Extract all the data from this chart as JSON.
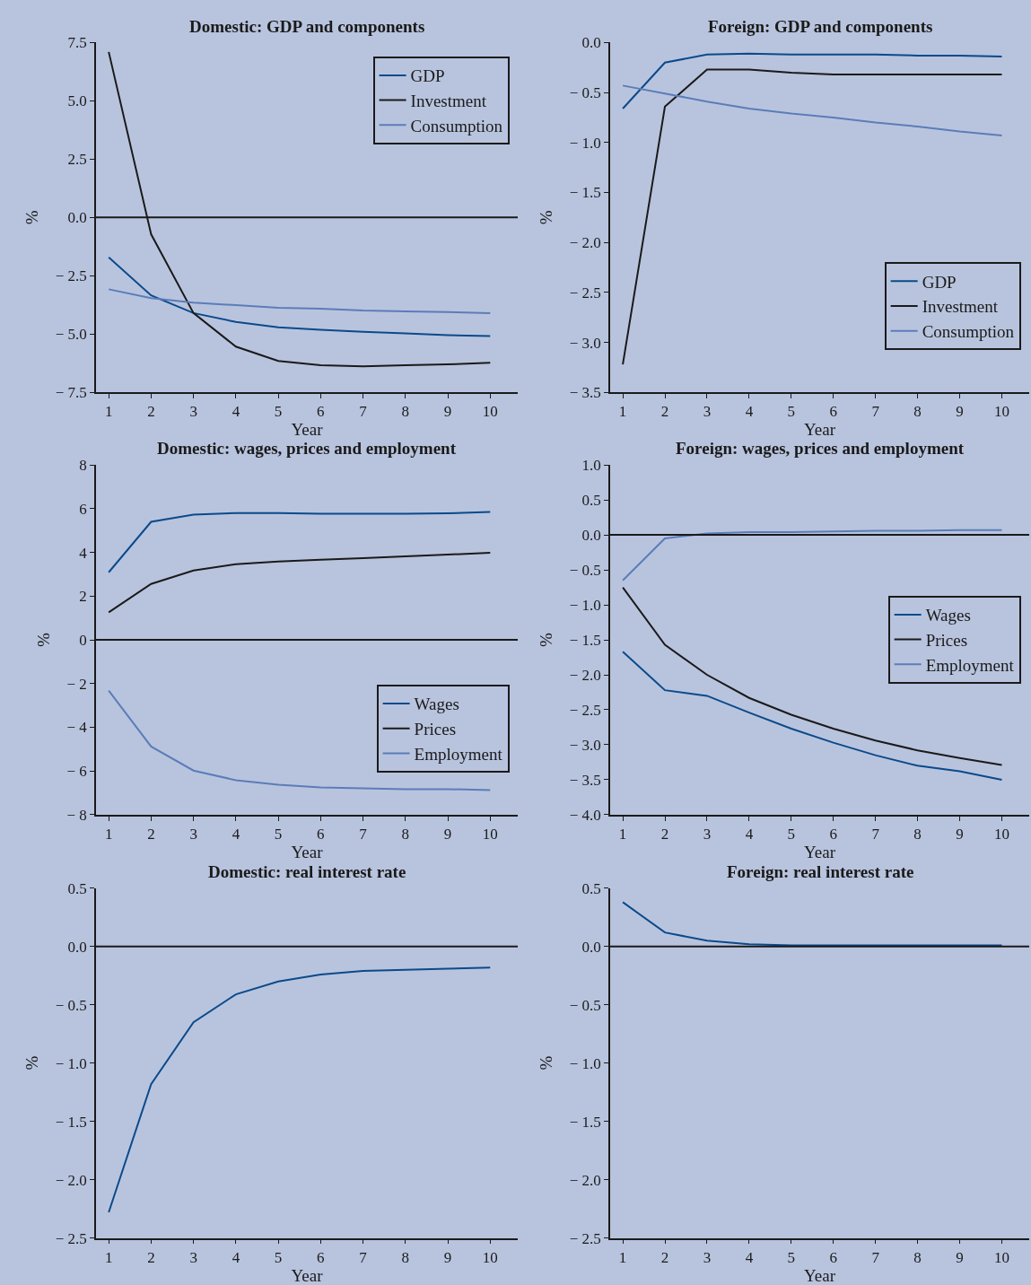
{
  "chart_data": [
    {
      "type": "line",
      "title": "Domestic: GDP and components",
      "xlabel": "Year",
      "ylabel": "%",
      "x": [
        1,
        2,
        3,
        4,
        5,
        6,
        7,
        8,
        9,
        10
      ],
      "xlim": [
        0.7,
        10.65
      ],
      "xticks": [
        1,
        2,
        3,
        4,
        5,
        6,
        7,
        8,
        9,
        10
      ],
      "ylim": [
        -7.5,
        7.5
      ],
      "yticks": [
        {
          "value": -7.5,
          "label": "− 7.5"
        },
        {
          "value": -5,
          "label": "− 5.0"
        },
        {
          "value": -2.5,
          "label": "− 2.5"
        },
        {
          "value": 0,
          "label": "0.0"
        },
        {
          "value": 2.5,
          "label": "2.5"
        },
        {
          "value": 5,
          "label": "5.0"
        },
        {
          "value": 7.5,
          "label": "7.5"
        }
      ],
      "grid": false,
      "legend": "top right",
      "ref_lines": [
        {
          "axis": "y",
          "value": 0,
          "color": "#1a1a1a"
        }
      ],
      "series": [
        {
          "name": "GDP",
          "color": "#0b4a8b",
          "values": [
            -1.71,
            -3.34,
            -4.1,
            -4.48,
            -4.71,
            -4.82,
            -4.9,
            -4.97,
            -5.05,
            -5.09
          ]
        },
        {
          "name": "Investment",
          "color": "#1a1a1a",
          "values": [
            7.1,
            -0.72,
            -4.1,
            -5.54,
            -6.15,
            -6.34,
            -6.38,
            -6.34,
            -6.3,
            -6.23
          ]
        },
        {
          "name": "Consumption",
          "color": "#5b7db8",
          "values": [
            -3.08,
            -3.46,
            -3.65,
            -3.76,
            -3.87,
            -3.91,
            -3.99,
            -4.03,
            -4.06,
            -4.1
          ]
        }
      ]
    },
    {
      "type": "line",
      "title": "Foreign: GDP and components",
      "xlabel": "Year",
      "ylabel": "%",
      "x": [
        1,
        2,
        3,
        4,
        5,
        6,
        7,
        8,
        9,
        10
      ],
      "xlim": [
        0.7,
        10.65
      ],
      "xticks": [
        1,
        2,
        3,
        4,
        5,
        6,
        7,
        8,
        9,
        10
      ],
      "ylim": [
        -3.5,
        0
      ],
      "yticks": [
        {
          "value": -3.5,
          "label": "− 3.5"
        },
        {
          "value": -3,
          "label": "− 3.0"
        },
        {
          "value": -2.5,
          "label": "− 2.5"
        },
        {
          "value": -2,
          "label": "− 2.0"
        },
        {
          "value": -1.5,
          "label": "− 1.5"
        },
        {
          "value": -1,
          "label": "− 1.0"
        },
        {
          "value": -0.5,
          "label": "− 0.5"
        },
        {
          "value": 0,
          "label": "0.0"
        }
      ],
      "grid": false,
      "legend": "bottom right",
      "series": [
        {
          "name": "GDP",
          "color": "#0b4a8b",
          "values": [
            -0.66,
            -0.2,
            -0.12,
            -0.11,
            -0.12,
            -0.12,
            -0.12,
            -0.13,
            -0.13,
            -0.14
          ]
        },
        {
          "name": "Investment",
          "color": "#1a1a1a",
          "values": [
            -3.22,
            -0.64,
            -0.27,
            -0.27,
            -0.3,
            -0.32,
            -0.32,
            -0.32,
            -0.32,
            -0.32
          ]
        },
        {
          "name": "Consumption",
          "color": "#5b7db8",
          "values": [
            -0.43,
            -0.51,
            -0.59,
            -0.66,
            -0.71,
            -0.75,
            -0.8,
            -0.84,
            -0.89,
            -0.93
          ]
        }
      ]
    },
    {
      "type": "line",
      "title": "Domestic: wages, prices and employment",
      "xlabel": "Year",
      "ylabel": "%",
      "x": [
        1,
        2,
        3,
        4,
        5,
        6,
        7,
        8,
        9,
        10
      ],
      "xlim": [
        0.7,
        10.65
      ],
      "xticks": [
        1,
        2,
        3,
        4,
        5,
        6,
        7,
        8,
        9,
        10
      ],
      "ylim": [
        -8,
        8
      ],
      "yticks": [
        {
          "value": -8,
          "label": "− 8"
        },
        {
          "value": -6,
          "label": "− 6"
        },
        {
          "value": -4,
          "label": "− 4"
        },
        {
          "value": -2,
          "label": "− 2"
        },
        {
          "value": 0,
          "label": "0"
        },
        {
          "value": 2,
          "label": "2"
        },
        {
          "value": 4,
          "label": "4"
        },
        {
          "value": 6,
          "label": "6"
        },
        {
          "value": 8,
          "label": "8"
        }
      ],
      "grid": false,
      "legend": "bottom right",
      "ref_lines": [
        {
          "axis": "y",
          "value": 0,
          "color": "#1a1a1a"
        }
      ],
      "series": [
        {
          "name": "Wages",
          "color": "#0b4a8b",
          "values": [
            3.09,
            5.4,
            5.73,
            5.8,
            5.8,
            5.77,
            5.77,
            5.77,
            5.79,
            5.85
          ]
        },
        {
          "name": "Prices",
          "color": "#1a1a1a",
          "values": [
            1.26,
            2.56,
            3.17,
            3.46,
            3.58,
            3.66,
            3.74,
            3.82,
            3.9,
            3.98
          ]
        },
        {
          "name": "Employment",
          "color": "#5b7db8",
          "values": [
            -2.32,
            -4.88,
            -5.98,
            -6.42,
            -6.63,
            -6.75,
            -6.79,
            -6.83,
            -6.83,
            -6.87
          ]
        }
      ]
    },
    {
      "type": "line",
      "title": "Foreign: wages, prices and employment",
      "xlabel": "Year",
      "ylabel": "%",
      "x": [
        1,
        2,
        3,
        4,
        5,
        6,
        7,
        8,
        9,
        10
      ],
      "xlim": [
        0.7,
        10.65
      ],
      "xticks": [
        1,
        2,
        3,
        4,
        5,
        6,
        7,
        8,
        9,
        10
      ],
      "ylim": [
        -4,
        1
      ],
      "yticks": [
        {
          "value": -4,
          "label": "− 4.0"
        },
        {
          "value": -3.5,
          "label": "− 3.5"
        },
        {
          "value": -3,
          "label": "− 3.0"
        },
        {
          "value": -2.5,
          "label": "− 2.5"
        },
        {
          "value": -2,
          "label": "− 2.0"
        },
        {
          "value": -1.5,
          "label": "− 1.5"
        },
        {
          "value": -1,
          "label": "− 1.0"
        },
        {
          "value": -0.5,
          "label": "− 0.5"
        },
        {
          "value": 0,
          "label": "0.0"
        },
        {
          "value": 0.5,
          "label": "0.5"
        },
        {
          "value": 1,
          "label": "1.0"
        }
      ],
      "grid": false,
      "legend": "right",
      "ref_lines": [
        {
          "axis": "y",
          "value": 0,
          "color": "#1a1a1a"
        }
      ],
      "series": [
        {
          "name": "Wages",
          "color": "#0b4a8b",
          "values": [
            -1.67,
            -2.22,
            -2.3,
            -2.54,
            -2.77,
            -2.97,
            -3.15,
            -3.3,
            -3.38,
            -3.5
          ]
        },
        {
          "name": "Prices",
          "color": "#1a1a1a",
          "values": [
            -0.75,
            -1.57,
            -2.0,
            -2.33,
            -2.57,
            -2.77,
            -2.94,
            -3.08,
            -3.19,
            -3.29
          ]
        },
        {
          "name": "Employment",
          "color": "#5b7db8",
          "values": [
            -0.65,
            -0.05,
            0.02,
            0.04,
            0.04,
            0.05,
            0.06,
            0.06,
            0.07,
            0.07
          ]
        }
      ]
    },
    {
      "type": "line",
      "title": "Domestic: real interest rate",
      "xlabel": "Year",
      "ylabel": "%",
      "x": [
        1,
        2,
        3,
        4,
        5,
        6,
        7,
        8,
        9,
        10
      ],
      "xlim": [
        0.7,
        10.65
      ],
      "xticks": [
        1,
        2,
        3,
        4,
        5,
        6,
        7,
        8,
        9,
        10
      ],
      "ylim": [
        -2.5,
        0.5
      ],
      "yticks": [
        {
          "value": -2.5,
          "label": "− 2.5"
        },
        {
          "value": -2,
          "label": "− 2.0"
        },
        {
          "value": -1.5,
          "label": "− 1.5"
        },
        {
          "value": -1,
          "label": "− 1.0"
        },
        {
          "value": -0.5,
          "label": "− 0.5"
        },
        {
          "value": 0,
          "label": "0.0"
        },
        {
          "value": 0.5,
          "label": "0.5"
        }
      ],
      "grid": false,
      "legend": false,
      "ref_lines": [
        {
          "axis": "y",
          "value": 0,
          "color": "#1a1a1a"
        }
      ],
      "series": [
        {
          "color": "#0b4a8b",
          "values": [
            -2.28,
            -1.18,
            -0.65,
            -0.41,
            -0.3,
            -0.24,
            -0.21,
            -0.2,
            -0.19,
            -0.18
          ]
        }
      ]
    },
    {
      "type": "line",
      "title": "Foreign: real interest rate",
      "xlabel": "Year",
      "ylabel": "%",
      "x": [
        1,
        2,
        3,
        4,
        5,
        6,
        7,
        8,
        9,
        10
      ],
      "xlim": [
        0.7,
        10.65
      ],
      "xticks": [
        1,
        2,
        3,
        4,
        5,
        6,
        7,
        8,
        9,
        10
      ],
      "ylim": [
        -2.5,
        0.5
      ],
      "yticks": [
        {
          "value": -2.5,
          "label": "− 2.5"
        },
        {
          "value": -2,
          "label": "− 2.0"
        },
        {
          "value": -1.5,
          "label": "− 1.5"
        },
        {
          "value": -1,
          "label": "− 1.0"
        },
        {
          "value": -0.5,
          "label": "− 0.5"
        },
        {
          "value": 0,
          "label": "0.0"
        },
        {
          "value": 0.5,
          "label": "0.5"
        }
      ],
      "grid": false,
      "legend": false,
      "ref_lines": [
        {
          "axis": "y",
          "value": 0,
          "color": "#1a1a1a"
        }
      ],
      "series": [
        {
          "color": "#0b4a8b",
          "values": [
            0.38,
            0.12,
            0.05,
            0.02,
            0.01,
            0.01,
            0.01,
            0.01,
            0.01,
            0.01
          ]
        }
      ]
    }
  ]
}
